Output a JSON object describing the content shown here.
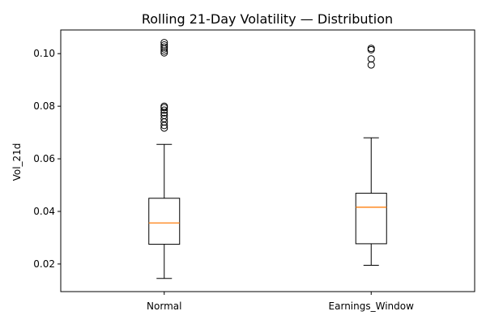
{
  "chart_data": {
    "type": "box",
    "title": "Rolling 21-Day Volatility — Distribution",
    "xlabel": "",
    "ylabel": "Vol_21d",
    "ylim": [
      0.0095,
      0.109
    ],
    "yticks": [
      0.02,
      0.04,
      0.06,
      0.08,
      0.1
    ],
    "ytick_labels": [
      "0.02",
      "0.04",
      "0.06",
      "0.08",
      "0.10"
    ],
    "categories": [
      "Normal",
      "Earnings_Window"
    ],
    "grid": false,
    "colors": {
      "box": "#000000",
      "median": "#ff7f0e"
    },
    "boxes": [
      {
        "name": "Normal",
        "whisker_low": 0.0145,
        "q1": 0.0275,
        "median": 0.0356,
        "q3": 0.045,
        "whisker_high": 0.0655,
        "outliers": [
          0.0717,
          0.0727,
          0.074,
          0.0753,
          0.0765,
          0.0775,
          0.0785,
          0.0795,
          0.08,
          0.1003,
          0.101,
          0.1018,
          0.1025,
          0.1033,
          0.1042
        ]
      },
      {
        "name": "Earnings_Window",
        "whisker_low": 0.0195,
        "q1": 0.0277,
        "median": 0.0416,
        "q3": 0.0469,
        "whisker_high": 0.068,
        "outliers": [
          0.0957,
          0.098,
          0.1015,
          0.102
        ]
      }
    ]
  }
}
